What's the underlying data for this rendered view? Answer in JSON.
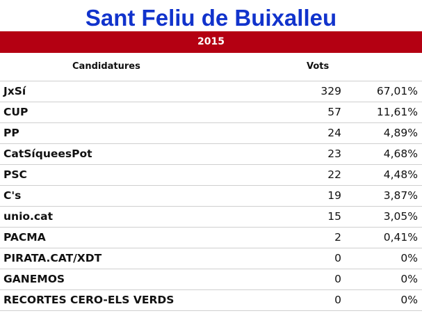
{
  "title": "Sant Feliu de Buixalleu",
  "year": "2015",
  "headers": {
    "candidatures": "Candidatures",
    "vots": "Vots"
  },
  "rows": [
    {
      "name": "JxSí",
      "votes": "329",
      "pct": "67,01%"
    },
    {
      "name": "CUP",
      "votes": "57",
      "pct": "11,61%"
    },
    {
      "name": "PP",
      "votes": "24",
      "pct": "4,89%"
    },
    {
      "name": "CatSíqueesPot",
      "votes": "23",
      "pct": "4,68%"
    },
    {
      "name": "PSC",
      "votes": "22",
      "pct": "4,48%"
    },
    {
      "name": "C's",
      "votes": "19",
      "pct": "3,87%"
    },
    {
      "name": "unio.cat",
      "votes": "15",
      "pct": "3,05%"
    },
    {
      "name": "PACMA",
      "votes": "2",
      "pct": "0,41%"
    },
    {
      "name": "PIRATA.CAT/XDT",
      "votes": "0",
      "pct": "0%"
    },
    {
      "name": "GANEMOS",
      "votes": "0",
      "pct": "0%"
    },
    {
      "name": "RECORTES CERO-ELS VERDS",
      "votes": "0",
      "pct": "0%"
    }
  ],
  "colors": {
    "title": "#1133cc",
    "band": "#b40012",
    "band_text": "#ffffff",
    "row_border": "#cfcfcf"
  }
}
